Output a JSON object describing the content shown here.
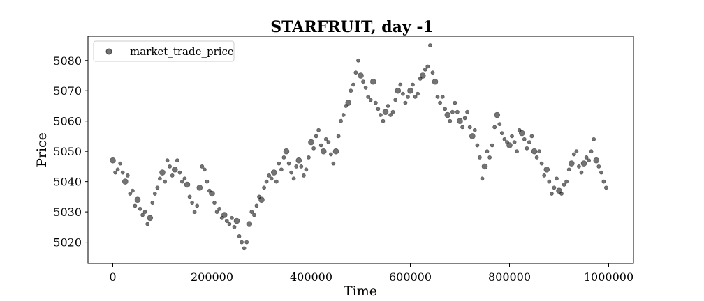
{
  "chart_data": {
    "type": "scatter",
    "title": "STARFRUIT, day -1",
    "xlabel": "Time",
    "ylabel": "Price",
    "xlim": [
      -50000,
      1050000
    ],
    "ylim": [
      5013,
      5088
    ],
    "xticks": [
      0,
      200000,
      400000,
      600000,
      800000,
      1000000
    ],
    "xtick_labels": [
      "0",
      "200000",
      "400000",
      "600000",
      "800000",
      "1000000"
    ],
    "yticks": [
      5020,
      5030,
      5040,
      5050,
      5060,
      5070,
      5080
    ],
    "ytick_labels": [
      "5020",
      "5030",
      "5040",
      "5050",
      "5060",
      "5070",
      "5080"
    ],
    "grid": false,
    "legend": {
      "position": "top-left",
      "entries": [
        "market_trade_price"
      ]
    },
    "marker_color": "#000000",
    "marker_alpha": 0.55,
    "series": [
      {
        "name": "market_trade_price",
        "points": [
          [
            0,
            5047
          ],
          [
            5000,
            5043
          ],
          [
            10000,
            5044
          ],
          [
            15000,
            5046
          ],
          [
            20000,
            5043
          ],
          [
            25000,
            5040
          ],
          [
            30000,
            5042
          ],
          [
            35000,
            5036
          ],
          [
            40000,
            5037
          ],
          [
            45000,
            5032
          ],
          [
            50000,
            5034
          ],
          [
            55000,
            5031
          ],
          [
            60000,
            5029
          ],
          [
            65000,
            5030
          ],
          [
            70000,
            5026
          ],
          [
            75000,
            5028
          ],
          [
            80000,
            5033
          ],
          [
            85000,
            5036
          ],
          [
            90000,
            5038
          ],
          [
            95000,
            5041
          ],
          [
            100000,
            5043
          ],
          [
            105000,
            5040
          ],
          [
            110000,
            5047
          ],
          [
            115000,
            5045
          ],
          [
            120000,
            5042
          ],
          [
            125000,
            5044
          ],
          [
            130000,
            5047
          ],
          [
            135000,
            5043
          ],
          [
            140000,
            5040
          ],
          [
            145000,
            5041
          ],
          [
            150000,
            5039
          ],
          [
            155000,
            5035
          ],
          [
            160000,
            5033
          ],
          [
            165000,
            5030
          ],
          [
            170000,
            5032
          ],
          [
            175000,
            5038
          ],
          [
            180000,
            5045
          ],
          [
            185000,
            5044
          ],
          [
            190000,
            5040
          ],
          [
            195000,
            5037
          ],
          [
            200000,
            5036
          ],
          [
            205000,
            5033
          ],
          [
            210000,
            5030
          ],
          [
            215000,
            5031
          ],
          [
            220000,
            5028
          ],
          [
            225000,
            5029
          ],
          [
            230000,
            5027
          ],
          [
            235000,
            5026
          ],
          [
            240000,
            5028
          ],
          [
            245000,
            5025
          ],
          [
            250000,
            5027
          ],
          [
            255000,
            5022
          ],
          [
            260000,
            5020
          ],
          [
            265000,
            5018
          ],
          [
            270000,
            5020
          ],
          [
            275000,
            5026
          ],
          [
            280000,
            5030
          ],
          [
            285000,
            5029
          ],
          [
            290000,
            5032
          ],
          [
            295000,
            5035
          ],
          [
            300000,
            5034
          ],
          [
            305000,
            5038
          ],
          [
            310000,
            5040
          ],
          [
            315000,
            5042
          ],
          [
            320000,
            5041
          ],
          [
            325000,
            5043
          ],
          [
            330000,
            5040
          ],
          [
            335000,
            5046
          ],
          [
            340000,
            5044
          ],
          [
            345000,
            5048
          ],
          [
            350000,
            5050
          ],
          [
            355000,
            5046
          ],
          [
            360000,
            5043
          ],
          [
            365000,
            5041
          ],
          [
            370000,
            5045
          ],
          [
            375000,
            5047
          ],
          [
            380000,
            5045
          ],
          [
            385000,
            5042
          ],
          [
            390000,
            5044
          ],
          [
            395000,
            5048
          ],
          [
            400000,
            5053
          ],
          [
            405000,
            5051
          ],
          [
            410000,
            5055
          ],
          [
            415000,
            5057
          ],
          [
            420000,
            5052
          ],
          [
            425000,
            5050
          ],
          [
            430000,
            5054
          ],
          [
            435000,
            5053
          ],
          [
            440000,
            5049
          ],
          [
            445000,
            5046
          ],
          [
            450000,
            5050
          ],
          [
            455000,
            5055
          ],
          [
            460000,
            5060
          ],
          [
            465000,
            5062
          ],
          [
            470000,
            5065
          ],
          [
            475000,
            5066
          ],
          [
            480000,
            5070
          ],
          [
            485000,
            5072
          ],
          [
            490000,
            5076
          ],
          [
            495000,
            5080
          ],
          [
            500000,
            5075
          ],
          [
            505000,
            5073
          ],
          [
            510000,
            5071
          ],
          [
            515000,
            5068
          ],
          [
            520000,
            5067
          ],
          [
            525000,
            5073
          ],
          [
            530000,
            5066
          ],
          [
            535000,
            5064
          ],
          [
            540000,
            5062
          ],
          [
            545000,
            5060
          ],
          [
            550000,
            5063
          ],
          [
            555000,
            5065
          ],
          [
            560000,
            5062
          ],
          [
            565000,
            5063
          ],
          [
            570000,
            5067
          ],
          [
            575000,
            5070
          ],
          [
            580000,
            5072
          ],
          [
            585000,
            5069
          ],
          [
            590000,
            5066
          ],
          [
            595000,
            5068
          ],
          [
            600000,
            5070
          ],
          [
            605000,
            5072
          ],
          [
            610000,
            5068
          ],
          [
            615000,
            5069
          ],
          [
            620000,
            5074
          ],
          [
            625000,
            5075
          ],
          [
            630000,
            5077
          ],
          [
            635000,
            5078
          ],
          [
            640000,
            5085
          ],
          [
            645000,
            5076
          ],
          [
            650000,
            5073
          ],
          [
            655000,
            5068
          ],
          [
            660000,
            5066
          ],
          [
            665000,
            5068
          ],
          [
            670000,
            5064
          ],
          [
            675000,
            5062
          ],
          [
            680000,
            5060
          ],
          [
            685000,
            5063
          ],
          [
            690000,
            5066
          ],
          [
            695000,
            5063
          ],
          [
            700000,
            5060
          ],
          [
            705000,
            5058
          ],
          [
            710000,
            5061
          ],
          [
            715000,
            5063
          ],
          [
            720000,
            5058
          ],
          [
            725000,
            5055
          ],
          [
            730000,
            5057
          ],
          [
            735000,
            5052
          ],
          [
            740000,
            5048
          ],
          [
            745000,
            5041
          ],
          [
            750000,
            5045
          ],
          [
            755000,
            5050
          ],
          [
            760000,
            5048
          ],
          [
            765000,
            5052
          ],
          [
            770000,
            5058
          ],
          [
            775000,
            5062
          ],
          [
            780000,
            5059
          ],
          [
            785000,
            5056
          ],
          [
            790000,
            5054
          ],
          [
            795000,
            5053
          ],
          [
            800000,
            5052
          ],
          [
            805000,
            5055
          ],
          [
            810000,
            5053
          ],
          [
            815000,
            5050
          ],
          [
            820000,
            5057
          ],
          [
            825000,
            5056
          ],
          [
            830000,
            5054
          ],
          [
            835000,
            5051
          ],
          [
            840000,
            5053
          ],
          [
            845000,
            5055
          ],
          [
            850000,
            5050
          ],
          [
            855000,
            5048
          ],
          [
            860000,
            5050
          ],
          [
            865000,
            5046
          ],
          [
            870000,
            5042
          ],
          [
            875000,
            5044
          ],
          [
            880000,
            5040
          ],
          [
            885000,
            5036
          ],
          [
            890000,
            5038
          ],
          [
            895000,
            5041
          ],
          [
            900000,
            5037
          ],
          [
            905000,
            5036
          ],
          [
            910000,
            5039
          ],
          [
            915000,
            5040
          ],
          [
            920000,
            5044
          ],
          [
            925000,
            5046
          ],
          [
            930000,
            5049
          ],
          [
            935000,
            5050
          ],
          [
            940000,
            5045
          ],
          [
            945000,
            5043
          ],
          [
            950000,
            5046
          ],
          [
            955000,
            5048
          ],
          [
            960000,
            5047
          ],
          [
            965000,
            5050
          ],
          [
            970000,
            5054
          ],
          [
            975000,
            5047
          ],
          [
            980000,
            5045
          ],
          [
            985000,
            5043
          ],
          [
            990000,
            5040
          ],
          [
            995000,
            5038
          ]
        ]
      }
    ]
  }
}
